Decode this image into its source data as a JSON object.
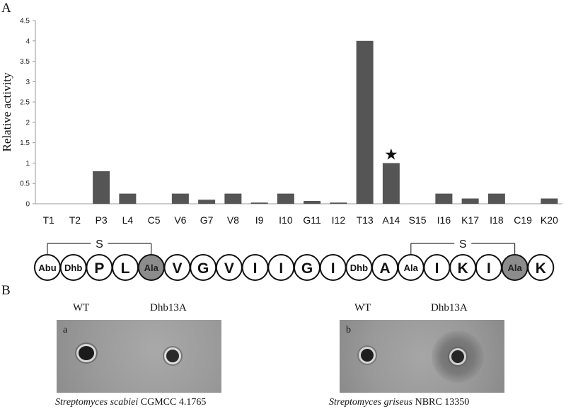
{
  "panel_a": {
    "letter": "A"
  },
  "panel_b": {
    "letter": "B"
  },
  "chart_data": {
    "type": "bar",
    "ylabel": "Relative activity",
    "xlabel": "",
    "ylim": [
      0,
      4.5
    ],
    "yticks": [
      "0",
      "0.5",
      "1",
      "1.5",
      "2",
      "2.5",
      "3",
      "3.5",
      "4",
      "4.5"
    ],
    "categories": [
      "T1",
      "T2",
      "P3",
      "L4",
      "C5",
      "V6",
      "G7",
      "V8",
      "I9",
      "I10",
      "G11",
      "I12",
      "T13",
      "A14",
      "S15",
      "I16",
      "K17",
      "I18",
      "C19",
      "K20"
    ],
    "values": [
      0,
      0,
      0.8,
      0.25,
      0,
      0.25,
      0.1,
      0.25,
      0.03,
      0.25,
      0.07,
      0.03,
      4.0,
      1.0,
      0,
      0.25,
      0.13,
      0.25,
      0,
      0.13
    ],
    "bar_color": "#555555",
    "annotation": {
      "category": "A14",
      "symbol": "★"
    }
  },
  "sequence": {
    "residues": [
      {
        "label": "Abu",
        "shaded": false,
        "small": true
      },
      {
        "label": "Dhb",
        "shaded": false,
        "small": true
      },
      {
        "label": "P",
        "shaded": false,
        "small": false
      },
      {
        "label": "L",
        "shaded": false,
        "small": false
      },
      {
        "label": "Ala",
        "shaded": true,
        "small": true
      },
      {
        "label": "V",
        "shaded": false,
        "small": false
      },
      {
        "label": "G",
        "shaded": false,
        "small": false
      },
      {
        "label": "V",
        "shaded": false,
        "small": false
      },
      {
        "label": "I",
        "shaded": false,
        "small": false
      },
      {
        "label": "I",
        "shaded": false,
        "small": false
      },
      {
        "label": "G",
        "shaded": false,
        "small": false
      },
      {
        "label": "I",
        "shaded": false,
        "small": false
      },
      {
        "label": "Dhb",
        "shaded": false,
        "small": true
      },
      {
        "label": "A",
        "shaded": false,
        "small": false
      },
      {
        "label": "Ala",
        "shaded": false,
        "small": true
      },
      {
        "label": "I",
        "shaded": false,
        "small": false
      },
      {
        "label": "K",
        "shaded": false,
        "small": false
      },
      {
        "label": "I",
        "shaded": false,
        "small": false
      },
      {
        "label": "Ala",
        "shaded": true,
        "small": true
      },
      {
        "label": "K",
        "shaded": false,
        "small": false
      }
    ],
    "bridges": [
      {
        "from": 0,
        "to": 4,
        "label": "S"
      },
      {
        "from": 14,
        "to": 18,
        "label": "S"
      }
    ],
    "shade_color": "#8c8c8c"
  },
  "plates": [
    {
      "tag": "a",
      "wt_label": "WT",
      "mutant_label": "Dhb13A",
      "species": "Streptomyces scabiei",
      "strain": "CGMCC 4.1765"
    },
    {
      "tag": "b",
      "wt_label": "WT",
      "mutant_label": "Dhb13A",
      "species": "Streptomyces griseus",
      "strain": "NBRC 13350"
    }
  ]
}
